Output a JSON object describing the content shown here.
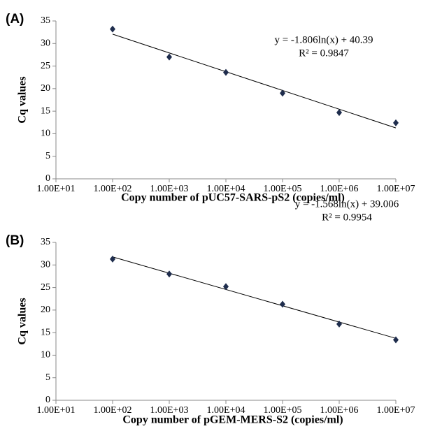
{
  "chart_data": [
    {
      "type": "scatter",
      "panel_label": "(A)",
      "x_label": "Copy number of pUC57-SARS-pS2 (copies/ml)",
      "y_label": "Cq values",
      "xscale": "log",
      "xlim": [
        10,
        10000000
      ],
      "xticks": [
        {
          "value": 10,
          "label": "1.00E+01"
        },
        {
          "value": 100,
          "label": "1.00E+02"
        },
        {
          "value": 1000,
          "label": "1.00E+03"
        },
        {
          "value": 10000,
          "label": "1.00E+04"
        },
        {
          "value": 100000,
          "label": "1.00E+05"
        },
        {
          "value": 1000000,
          "label": "1.00E+06"
        },
        {
          "value": 10000000,
          "label": "1.00E+07"
        }
      ],
      "ylim": [
        0,
        35
      ],
      "yticks": [
        0,
        5,
        10,
        15,
        20,
        25,
        30,
        35
      ],
      "x": [
        100,
        1000,
        10000,
        100000,
        1000000,
        10000000
      ],
      "values": [
        33.2,
        27,
        23.6,
        19,
        14.7,
        12.4
      ],
      "color": "#1f2d4d",
      "trendline": {
        "label": "y = -1.806ln(x) + 40.39",
        "slope": -1.806,
        "intercept": 40.39,
        "r2_label": "R² = 0.9847"
      }
    },
    {
      "type": "scatter",
      "panel_label": "(B)",
      "x_label": "Copy number of pGEM-MERS-S2 (copies/ml)",
      "y_label": "Cq values",
      "xscale": "log",
      "xlim": [
        10,
        10000000
      ],
      "xticks": [
        {
          "value": 10,
          "label": "1.00E+01"
        },
        {
          "value": 100,
          "label": "1.00E+02"
        },
        {
          "value": 1000,
          "label": "1.00E+03"
        },
        {
          "value": 10000,
          "label": "1.00E+04"
        },
        {
          "value": 100000,
          "label": "1.00E+05"
        },
        {
          "value": 1000000,
          "label": "1.00E+06"
        },
        {
          "value": 10000000,
          "label": "1.00E+07"
        }
      ],
      "ylim": [
        0,
        35
      ],
      "yticks": [
        0,
        5,
        10,
        15,
        20,
        25,
        30,
        35
      ],
      "x": [
        100,
        1000,
        10000,
        100000,
        1000000,
        10000000
      ],
      "values": [
        31.3,
        28,
        25.2,
        21.3,
        16.9,
        13.4
      ],
      "color": "#1f2d4d",
      "trendline": {
        "label": "y = -1.568ln(x) + 39.006",
        "slope": -1.568,
        "intercept": 39.006,
        "r2_label": "R² = 0.9954"
      }
    }
  ]
}
